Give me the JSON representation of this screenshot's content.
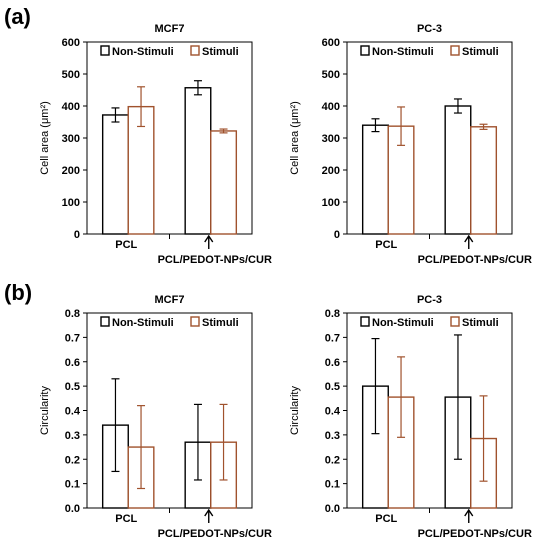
{
  "panels": [
    {
      "label": "(a)"
    },
    {
      "label": "(b)"
    }
  ],
  "colors": {
    "non_stimuli": "#000000",
    "stimuli": "#a0522d"
  },
  "chart_data": [
    {
      "type": "bar",
      "title": "MCF7",
      "ylabel": "Cell area (μm²)",
      "ylim": [
        0,
        600
      ],
      "yticks": [
        0,
        100,
        200,
        300,
        400,
        500,
        600
      ],
      "categories": [
        "PCL",
        "PCL/PEDOT-NPs/CUR"
      ],
      "series": [
        {
          "name": "Non-Stimuli",
          "values": [
            372,
            457
          ],
          "errors": [
            22,
            22
          ]
        },
        {
          "name": "Stimuli",
          "values": [
            398,
            322
          ],
          "errors": [
            62,
            6
          ]
        }
      ],
      "legend": "top",
      "arrow_on": "PCL/PEDOT-NPs/CUR"
    },
    {
      "type": "bar",
      "title": "PC-3",
      "ylabel": "Cell area (μm²)",
      "ylim": [
        0,
        600
      ],
      "yticks": [
        0,
        100,
        200,
        300,
        400,
        500,
        600
      ],
      "categories": [
        "PCL",
        "PCL/PEDOT-NPs/CUR"
      ],
      "series": [
        {
          "name": "Non-Stimuli",
          "values": [
            340,
            400
          ],
          "errors": [
            20,
            22
          ]
        },
        {
          "name": "Stimuli",
          "values": [
            337,
            335
          ],
          "errors": [
            60,
            8
          ]
        }
      ],
      "legend": "top",
      "arrow_on": "PCL/PEDOT-NPs/CUR"
    },
    {
      "type": "bar",
      "title": "MCF7",
      "ylabel": "Circularity",
      "ylim": [
        0,
        0.8
      ],
      "yticks": [
        0,
        0.1,
        0.2,
        0.3,
        0.4,
        0.5,
        0.6,
        0.7,
        0.8
      ],
      "categories": [
        "PCL",
        "PCL/PEDOT-NPs/CUR"
      ],
      "series": [
        {
          "name": "Non-Stimuli",
          "values": [
            0.34,
            0.27
          ],
          "errors": [
            0.19,
            0.155
          ]
        },
        {
          "name": "Stimuli",
          "values": [
            0.25,
            0.27
          ],
          "errors": [
            0.17,
            0.155
          ]
        }
      ],
      "legend": "top",
      "arrow_on": "PCL/PEDOT-NPs/CUR"
    },
    {
      "type": "bar",
      "title": "PC-3",
      "ylabel": "Circularity",
      "ylim": [
        0,
        0.8
      ],
      "yticks": [
        0,
        0.1,
        0.2,
        0.3,
        0.4,
        0.5,
        0.6,
        0.7,
        0.8
      ],
      "categories": [
        "PCL",
        "PCL/PEDOT-NPs/CUR"
      ],
      "series": [
        {
          "name": "Non-Stimuli",
          "values": [
            0.5,
            0.455
          ],
          "errors": [
            0.195,
            0.255
          ]
        },
        {
          "name": "Stimuli",
          "values": [
            0.455,
            0.285
          ],
          "errors": [
            0.165,
            0.175
          ]
        }
      ],
      "legend": "top",
      "arrow_on": "PCL/PEDOT-NPs/CUR"
    }
  ]
}
